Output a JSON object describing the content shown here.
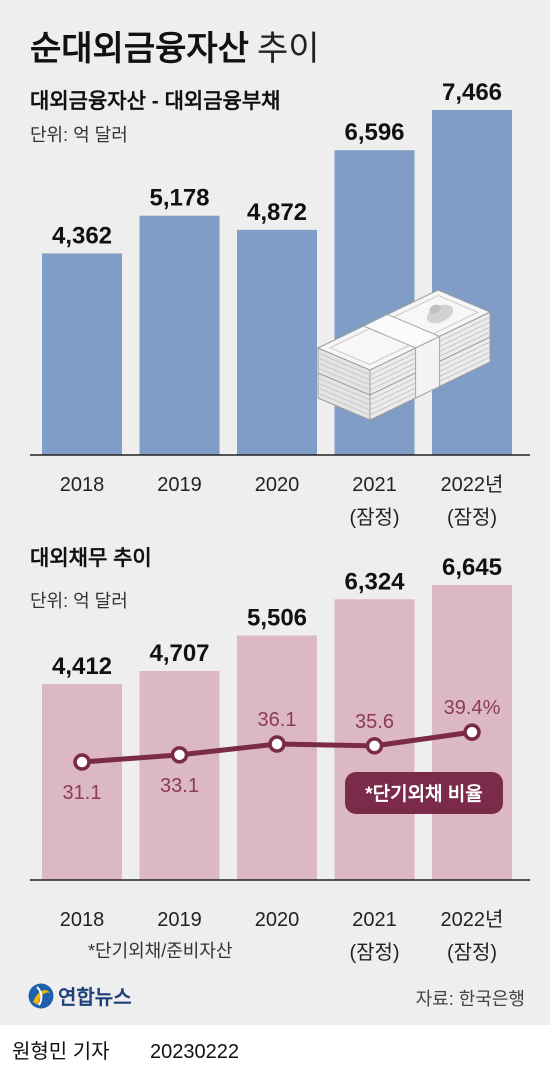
{
  "colors": {
    "background": "#eeeeee",
    "asset_bar": "#7f9dc7",
    "debt_bar": "#dcb8c2",
    "ratio_line": "#7b2a4a",
    "ratio_label": "#8c3b5b"
  },
  "chart_data": [
    {
      "type": "bar",
      "title": "순대외금융자산",
      "title_suffix": "추이",
      "subtitle": "대외금융자산 - 대외금융부채",
      "unit": "단위: 억 달러",
      "categories": [
        "2018",
        "2019",
        "2020",
        "2021",
        "2022년"
      ],
      "category_notes": [
        "",
        "",
        "",
        "(잠정)",
        "(잠정)"
      ],
      "values": [
        4362,
        5178,
        4872,
        6596,
        7466
      ],
      "value_labels": [
        "4,362",
        "5,178",
        "4,872",
        "6,596",
        "7,466"
      ],
      "grid": false,
      "illustration": "money-stack-icon"
    },
    {
      "type": "bar",
      "title": "대외채무 추이",
      "unit": "단위: 억 달러",
      "categories": [
        "2018",
        "2019",
        "2020",
        "2021",
        "2022년"
      ],
      "category_notes": [
        "",
        "",
        "",
        "(잠정)",
        "(잠정)"
      ],
      "series": [
        {
          "type": "bar",
          "values": [
            4412,
            4707,
            5506,
            6324,
            6645
          ],
          "value_labels": [
            "4,412",
            "4,707",
            "5,506",
            "6,324",
            "6,645"
          ]
        },
        {
          "type": "line",
          "name": "*단기외채 비율",
          "values": [
            31.1,
            33.1,
            36.1,
            35.6,
            39.4
          ],
          "value_labels": [
            "31.1",
            "33.1",
            "36.1",
            "35.6",
            "39.4%"
          ]
        }
      ],
      "footnote": "*단기외채/준비자산",
      "grid": false
    }
  ],
  "footer": {
    "logo_icon": "yonhap-logo-icon",
    "logo_text": "연합뉴스",
    "source": "자료: 한국은행",
    "reporter": "원형민 기자",
    "date": "20230222"
  }
}
